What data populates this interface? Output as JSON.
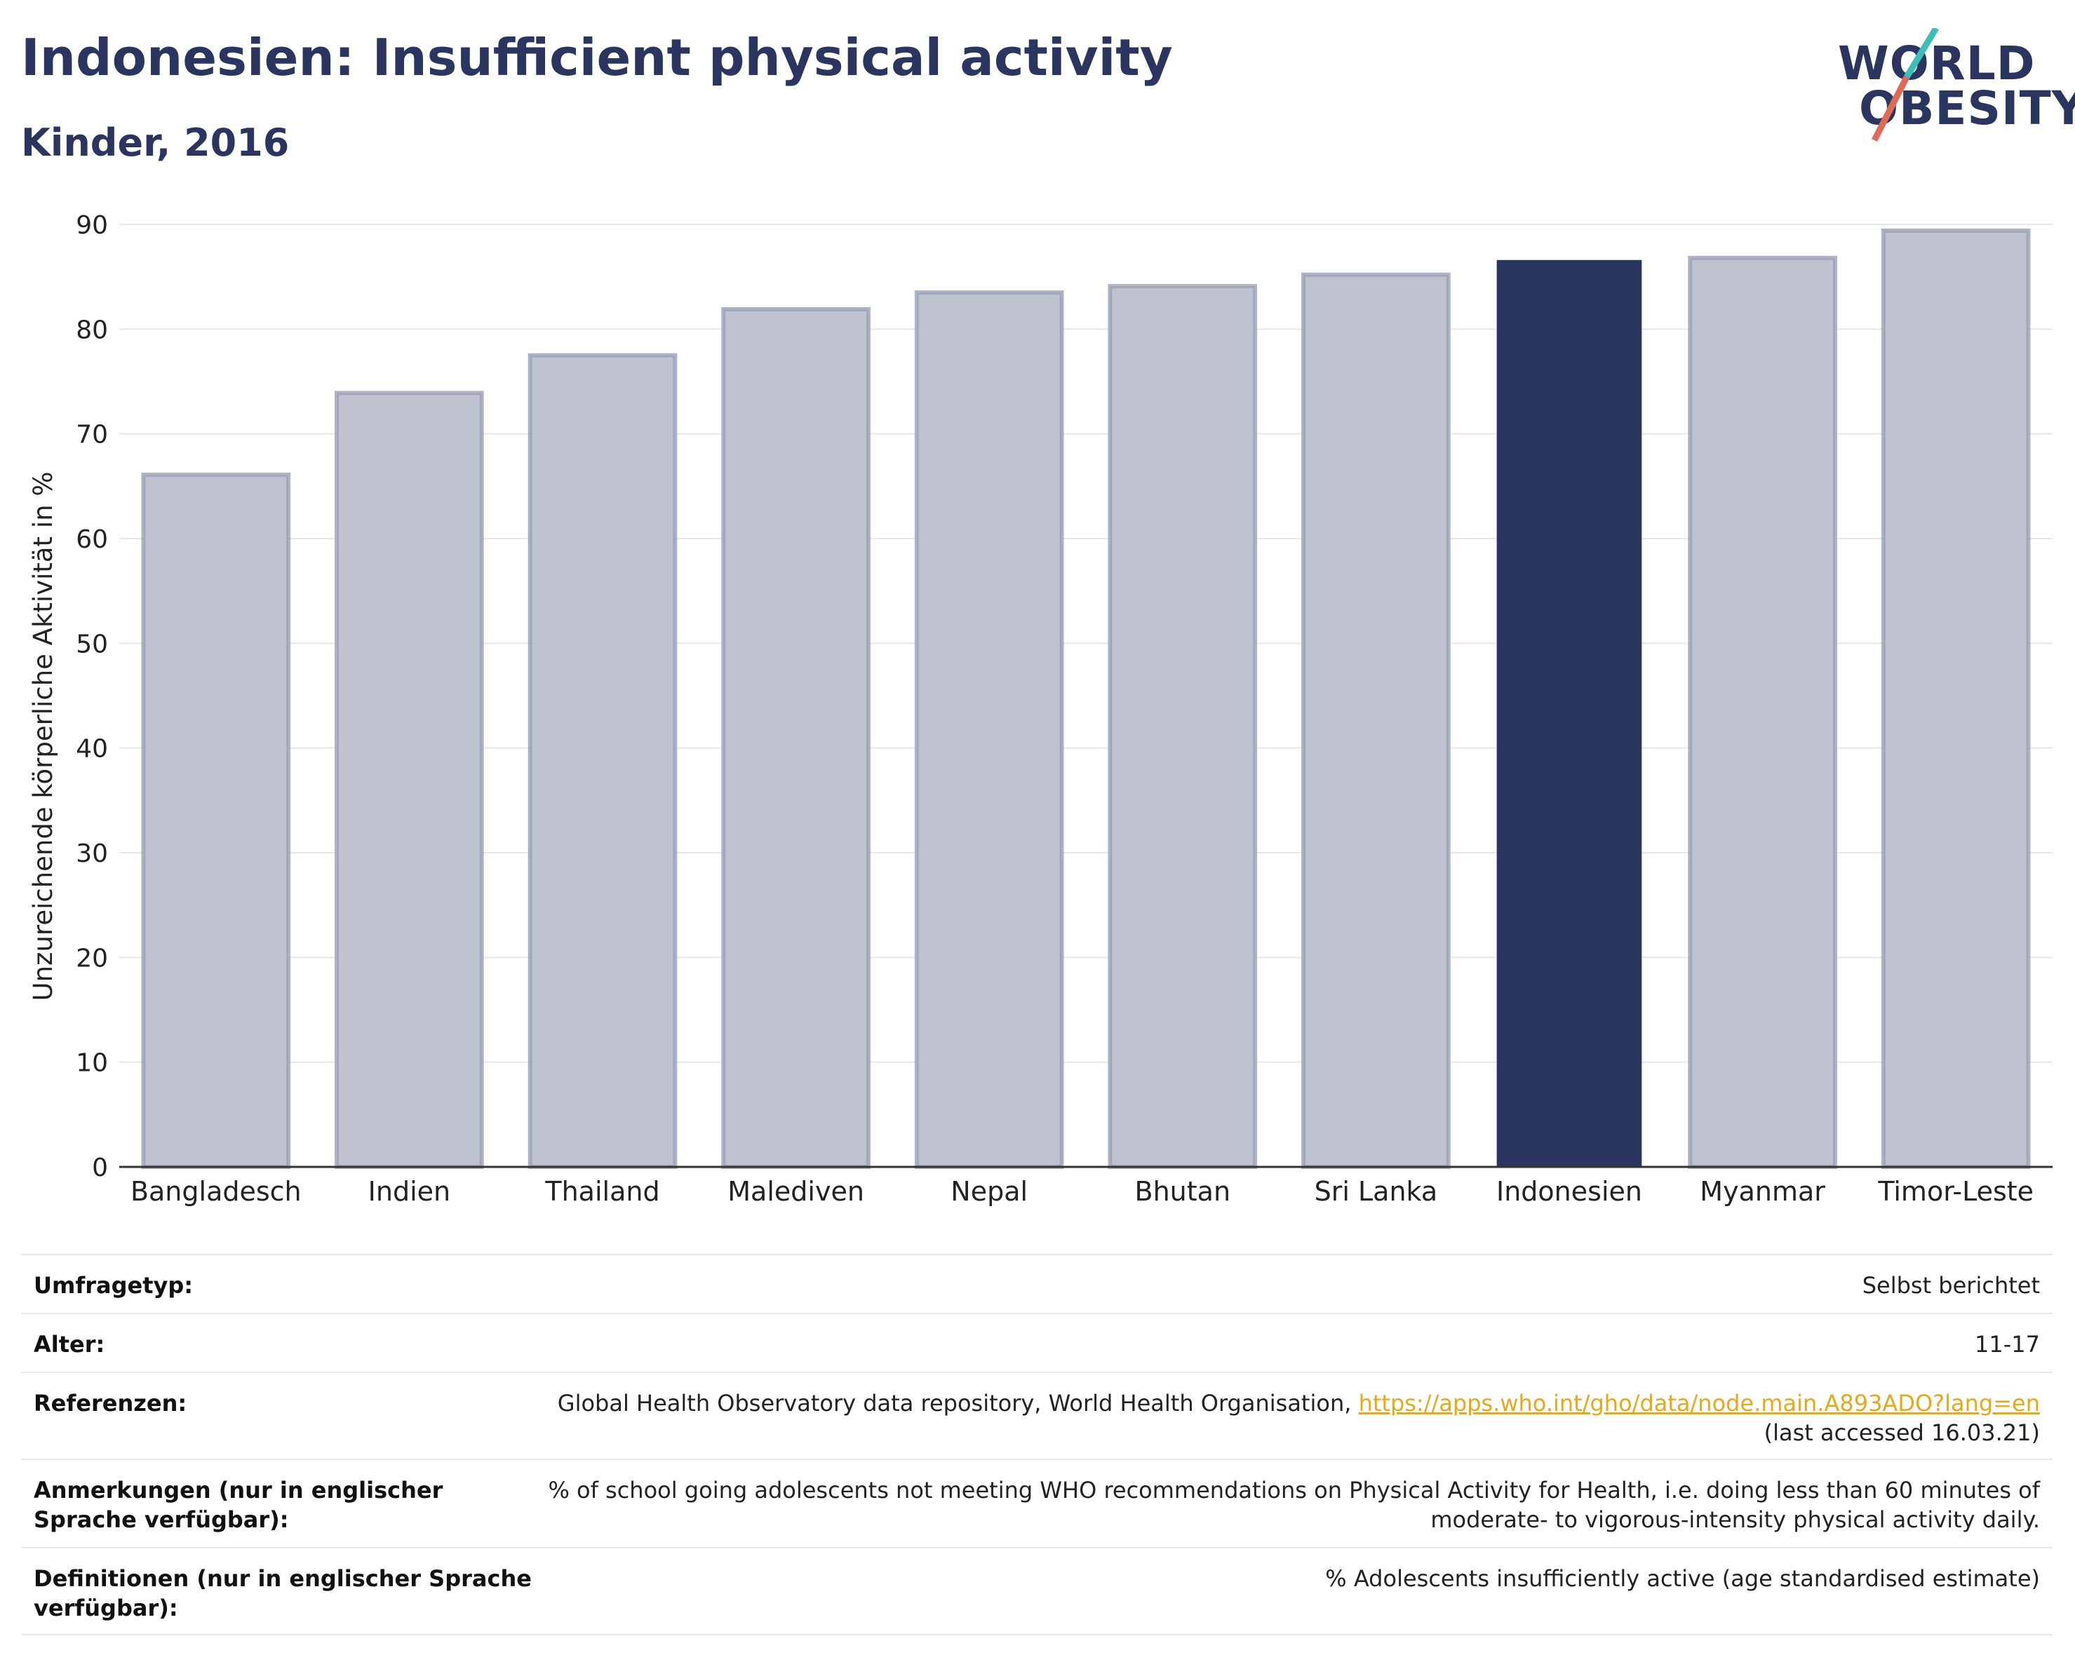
{
  "header": {
    "title": "Indonesien: Insufficient physical activity",
    "subtitle": "Kinder, 2016"
  },
  "logo": {
    "line1": "WORLD",
    "line2": "OBESITY"
  },
  "colors": {
    "highlight": "#2a3560",
    "bar": "#bfc2cf",
    "bar_edge": "#9aa0b6",
    "accent_teal": "#3bbfb8",
    "accent_coral": "#e06a55",
    "link": "#e9a817"
  },
  "chart_data": {
    "type": "bar",
    "categories": [
      "Bangladesch",
      "Indien",
      "Thailand",
      "Malediven",
      "Nepal",
      "Bhutan",
      "Sri Lanka",
      "Indonesien",
      "Myanmar",
      "Timor-Leste"
    ],
    "values": [
      66.1,
      73.9,
      77.5,
      81.9,
      83.5,
      84.1,
      85.2,
      86.6,
      86.8,
      89.4
    ],
    "highlight": "Indonesien",
    "ylabel": "Unzureichende körperliche Aktivität in %",
    "xlabel": "",
    "ylim": [
      0,
      90
    ],
    "yticks": [
      0,
      10,
      20,
      30,
      40,
      50,
      60,
      70,
      80,
      90
    ],
    "grid": true
  },
  "info": {
    "survey_type": {
      "label": "Umfragetyp:",
      "value": "Selbst berichtet"
    },
    "age": {
      "label": "Alter:",
      "value": "11-17"
    },
    "references": {
      "label": "Referenzen:",
      "text": "Global Health Observatory data repository, World Health Organisation, ",
      "link": "https://apps.who.int/gho/data/node.main.A893ADO?lang=en",
      "accessed": "(last accessed 16.03.21)"
    },
    "notes": {
      "label": "Anmerkungen (nur in englischer Sprache verfügbar):",
      "value": "% of school going adolescents not meeting WHO recommendations on Physical Activity for Health, i.e. doing less than 60 minutes of moderate- to vigorous-intensity physical activity daily."
    },
    "definitions": {
      "label": "Definitionen (nur in englischer Sprache verfügbar):",
      "value": "% Adolescents insufficiently active (age standardised estimate)"
    }
  }
}
